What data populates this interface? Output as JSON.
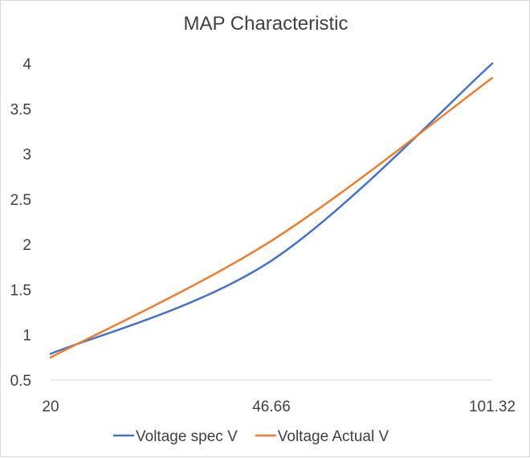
{
  "chart_data": {
    "type": "line",
    "title": "MAP Characteristic",
    "xlabel": "",
    "ylabel": "",
    "x_tick_labels": [
      "20",
      "46.66",
      "101.32"
    ],
    "y_ticks": [
      "0.5",
      "1",
      "1.5",
      "2",
      "2.5",
      "3",
      "3.5",
      "4"
    ],
    "ylim": [
      0.5,
      4
    ],
    "x_scale": "category",
    "grid": false,
    "legend_position": "bottom",
    "series": [
      {
        "name": "Voltage spec V",
        "color": "#4472C4",
        "x": [
          20,
          46.66,
          101.32
        ],
        "y": [
          0.79,
          1.82,
          4.0
        ]
      },
      {
        "name": "Voltage Actual V",
        "color": "#ED7D31",
        "x": [
          20,
          46.66,
          101.32
        ],
        "y": [
          0.75,
          2.04,
          3.84
        ]
      }
    ]
  }
}
